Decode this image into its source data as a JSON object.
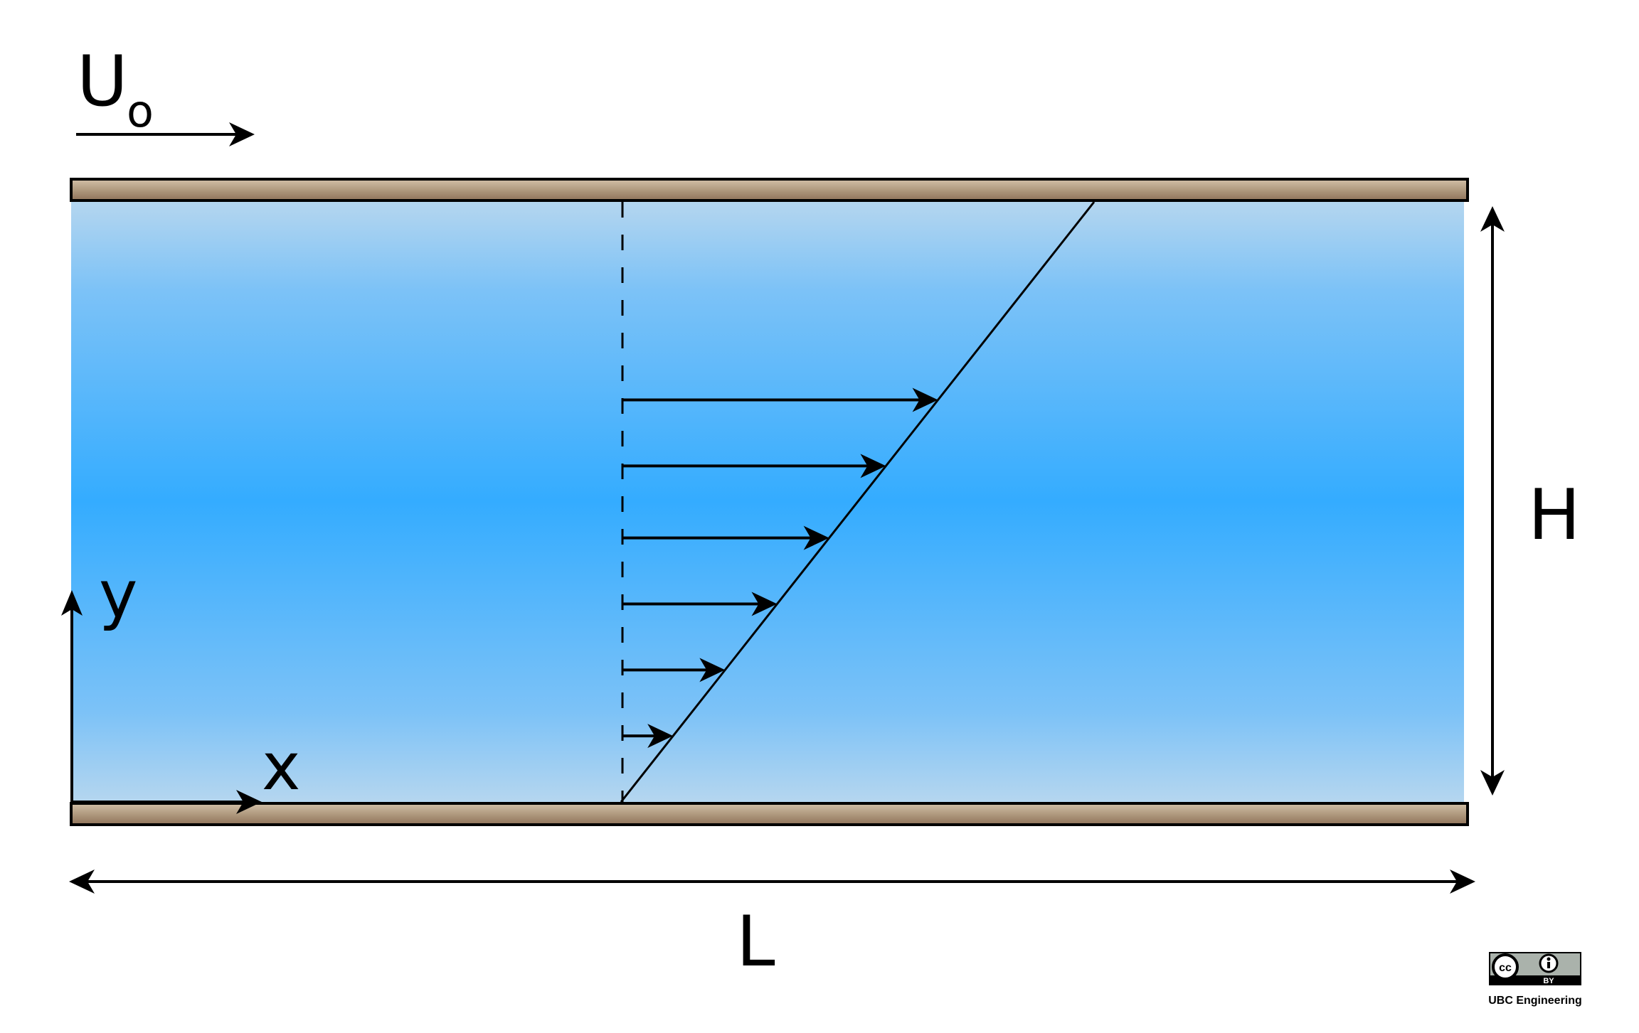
{
  "labels": {
    "velocity_symbol": "U",
    "velocity_subscript": "o",
    "x_axis": "x",
    "y_axis": "y",
    "height": "H",
    "length": "L"
  },
  "license": {
    "cc": "cc",
    "by": "BY",
    "credit": "UBC Engineering"
  },
  "profile": {
    "arrow_fractions": [
      0.11,
      0.22,
      0.33,
      0.44,
      0.56,
      0.67
    ]
  },
  "colors": {
    "fluid_edge": "#b5d6ef",
    "fluid_center": "#34acff",
    "wall_light": "#c8b49b",
    "wall_dark": "#9a7e63",
    "stroke": "#000000",
    "badge_gray": "#aab2ab"
  }
}
